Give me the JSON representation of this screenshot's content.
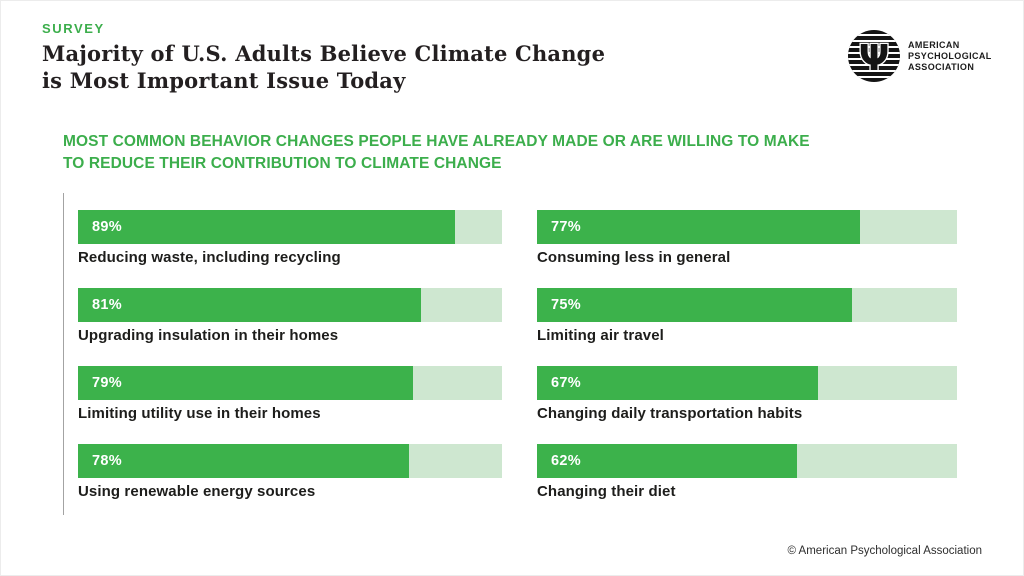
{
  "theme": {
    "green_bar": "#3cb24b",
    "green_track": "#cee7d0",
    "green_text": "#3cae4c",
    "ink": "#231f20"
  },
  "header": {
    "kicker": "SURVEY",
    "title": "Majority of U.S. Adults Believe Climate Change\nis Most Important Issue Today"
  },
  "logo": {
    "org": "AMERICAN\nPSYCHOLOGICAL\nASSOCIATION",
    "glyph": "Ψ"
  },
  "chart_data": {
    "type": "bar",
    "orientation": "horizontal",
    "title": "MOST COMMON BEHAVIOR CHANGES PEOPLE HAVE ALREADY MADE OR ARE WILLING TO MAKE\nTO REDUCE THEIR CONTRIBUTION TO CLIMATE CHANGE",
    "categories": [
      "Reducing waste, including recycling",
      "Upgrading insulation in their homes",
      "Limiting utility use in their homes",
      "Using renewable energy sources",
      "Consuming less in general",
      "Limiting air travel",
      "Changing daily transportation habits",
      "Changing their diet"
    ],
    "values": [
      89,
      81,
      79,
      78,
      77,
      75,
      67,
      62
    ],
    "value_labels": [
      "89%",
      "81%",
      "79%",
      "78%",
      "77%",
      "75%",
      "67%",
      "62%"
    ],
    "xlim": [
      0,
      100
    ],
    "grid": false,
    "legend": false,
    "layout": "two-column",
    "column_indexes": [
      [
        0,
        1,
        2,
        3
      ],
      [
        4,
        5,
        6,
        7
      ]
    ],
    "bar_color": "#3cb24b",
    "track_color": "#cee7d0"
  },
  "footer": {
    "copyright": "© American Psychological Association"
  }
}
